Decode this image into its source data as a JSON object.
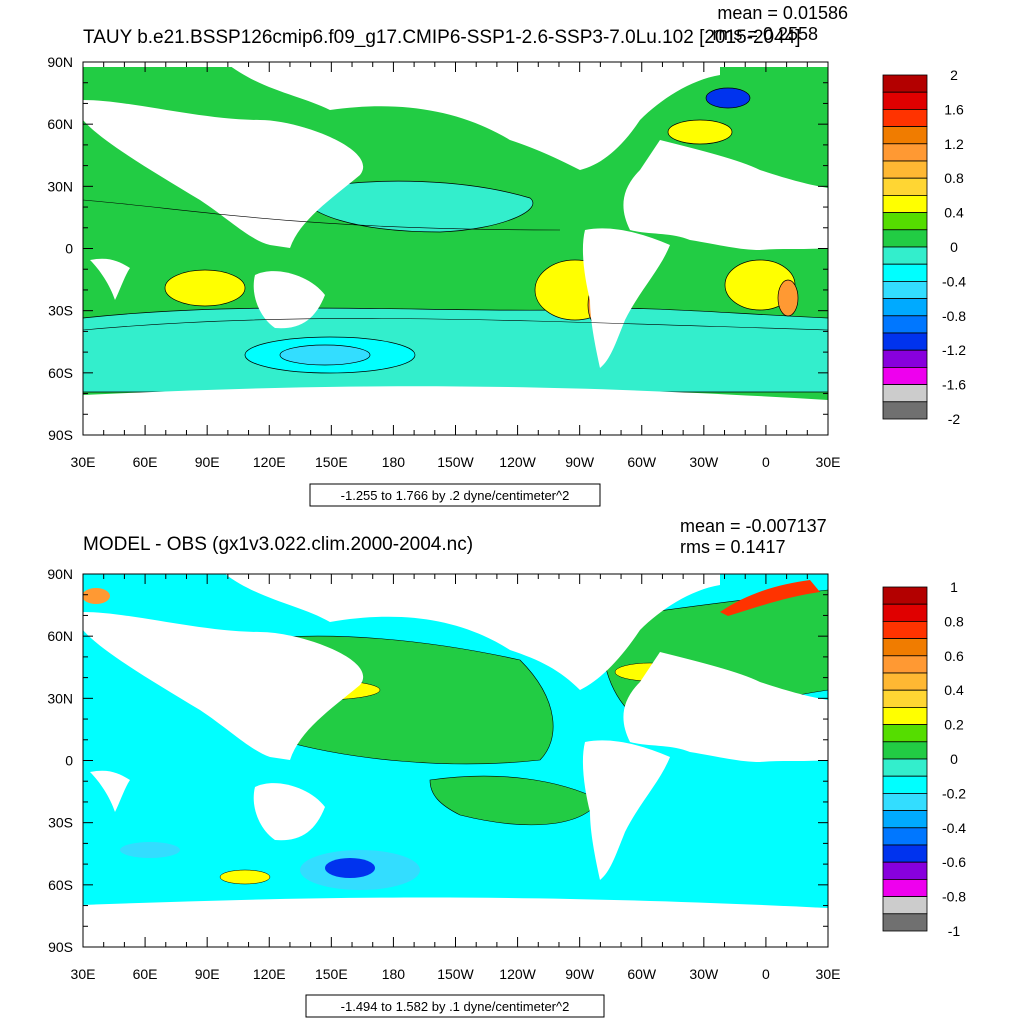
{
  "chart_data": [
    {
      "type": "heatmap",
      "title": "TAUY b.e21.BSSP126cmip6.f09_g17.CMIP6-SSP1-2.6-SSP3-7.0Lu.102 [2015-2044]",
      "mean_label": "mean = 0.01586",
      "rms_label": "rms = 0.2558",
      "range_label": "-1.255 to 1.766 by .2 dyne/centimeter^2",
      "xlabel": "",
      "ylabel": "",
      "x_ticks": [
        "30E",
        "60E",
        "90E",
        "120E",
        "150E",
        "180",
        "150W",
        "120W",
        "90W",
        "60W",
        "30W",
        "0",
        "30E"
      ],
      "y_ticks": [
        "90N",
        "60N",
        "30N",
        "0",
        "30S",
        "60S",
        "90S"
      ],
      "colorbar": {
        "labels": [
          "2",
          "1.6",
          "1.2",
          "0.8",
          "0.4",
          "0",
          "-0.4",
          "-0.8",
          "-1.2",
          "-1.6",
          "-2"
        ],
        "levels": [
          2,
          1.8,
          1.6,
          1.4,
          1.2,
          1.0,
          0.8,
          0.6,
          0.4,
          0.2,
          0,
          -0.2,
          -0.4,
          -0.6,
          -0.8,
          -1.0,
          -1.2,
          -1.4,
          -1.6,
          -1.8,
          -2
        ],
        "colors": [
          "#b30000",
          "#e00000",
          "#ff3300",
          "#f07c00",
          "#ff9933",
          "#ffb833",
          "#ffd633",
          "#ffff00",
          "#55dd00",
          "#22cc44",
          "#33eecc",
          "#00ffff",
          "#33ddff",
          "#00aaff",
          "#0077ff",
          "#0033ee",
          "#8800dd",
          "#ee00ee",
          "#cccccc",
          "#707070"
        ]
      },
      "grid": false
    },
    {
      "type": "heatmap",
      "title": "MODEL - OBS (gx1v3.022.clim.2000-2004.nc)",
      "mean_label": "mean = -0.007137",
      "rms_label": "rms = 0.1417",
      "range_label": "-1.494 to 1.582 by .1 dyne/centimeter^2",
      "xlabel": "",
      "ylabel": "",
      "x_ticks": [
        "30E",
        "60E",
        "90E",
        "120E",
        "150E",
        "180",
        "150W",
        "120W",
        "90W",
        "60W",
        "30W",
        "0",
        "30E"
      ],
      "y_ticks": [
        "90N",
        "60N",
        "30N",
        "0",
        "30S",
        "60S",
        "90S"
      ],
      "colorbar": {
        "labels": [
          "1",
          "0.8",
          "0.6",
          "0.4",
          "0.2",
          "0",
          "-0.2",
          "-0.4",
          "-0.6",
          "-0.8",
          "-1"
        ],
        "levels": [
          1,
          0.9,
          0.8,
          0.7,
          0.6,
          0.5,
          0.4,
          0.3,
          0.2,
          0.1,
          0,
          -0.1,
          -0.2,
          -0.3,
          -0.4,
          -0.5,
          -0.6,
          -0.7,
          -0.8,
          -0.9,
          -1
        ],
        "colors": [
          "#b30000",
          "#e00000",
          "#ff3300",
          "#f07c00",
          "#ff9933",
          "#ffb833",
          "#ffd633",
          "#ffff00",
          "#55dd00",
          "#22cc44",
          "#33eecc",
          "#00ffff",
          "#33ddff",
          "#00aaff",
          "#0077ff",
          "#0033ee",
          "#8800dd",
          "#ee00ee",
          "#cccccc",
          "#707070"
        ]
      },
      "grid": false
    }
  ]
}
